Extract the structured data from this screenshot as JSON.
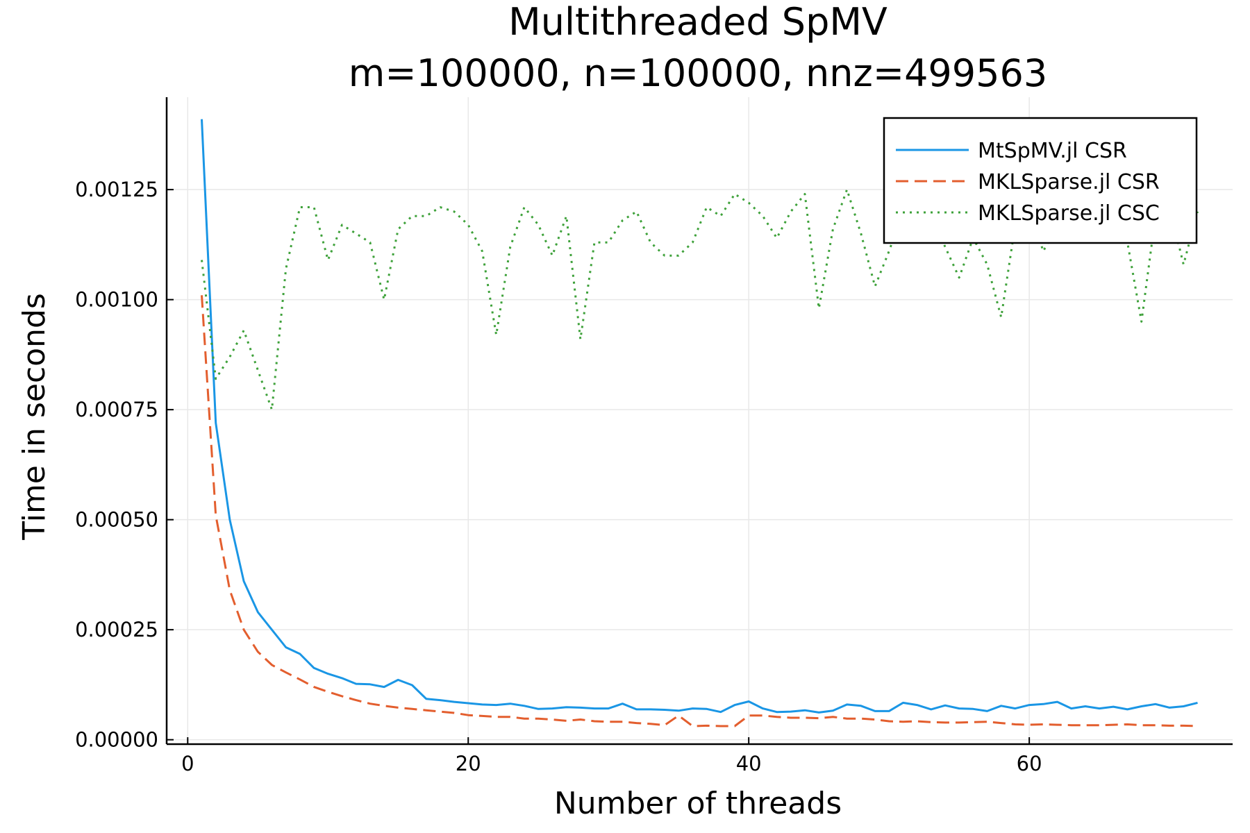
{
  "chart_data": {
    "type": "line",
    "title": "Multithreaded SpMV",
    "subtitle": "m=100000, n=100000, nnz=499563",
    "xlabel": "Number of threads",
    "ylabel": "Time in seconds",
    "xlim": [
      -1.5,
      74.5
    ],
    "ylim": [
      -1e-05,
      0.00146
    ],
    "xticks": [
      0,
      20,
      40,
      60
    ],
    "xtick_labels": [
      "0",
      "20",
      "40",
      "60"
    ],
    "yticks": [
      0,
      0.00025,
      0.0005,
      0.00075,
      0.001,
      0.00125
    ],
    "ytick_labels": [
      "0.00000",
      "0.00025",
      "0.00050",
      "0.00075",
      "0.00100",
      "0.00125"
    ],
    "grid": true,
    "legend_position": "top-right",
    "x": [
      1,
      2,
      3,
      4,
      5,
      6,
      7,
      8,
      9,
      10,
      11,
      12,
      13,
      14,
      15,
      16,
      17,
      18,
      19,
      20,
      21,
      22,
      23,
      24,
      25,
      26,
      27,
      28,
      29,
      30,
      31,
      32,
      33,
      34,
      35,
      36,
      37,
      38,
      39,
      40,
      41,
      42,
      43,
      44,
      45,
      46,
      47,
      48,
      49,
      50,
      51,
      52,
      53,
      54,
      55,
      56,
      57,
      58,
      59,
      60,
      61,
      62,
      63,
      64,
      65,
      66,
      67,
      68,
      69,
      70,
      71,
      72
    ],
    "series": [
      {
        "name": "MtSpMV.jl CSR",
        "color": "#1a96e5",
        "dash": "solid",
        "values": [
          0.00141,
          0.00072,
          0.0005,
          0.00036,
          0.00029,
          0.00025,
          0.00021,
          0.000195,
          0.000163,
          0.00015,
          0.00014,
          0.000127,
          0.000126,
          0.00012,
          0.000136,
          0.000124,
          9.3e-05,
          9e-05,
          8.6e-05,
          8.3e-05,
          8e-05,
          7.9e-05,
          8.2e-05,
          7.7e-05,
          7e-05,
          7.1e-05,
          7.4e-05,
          7.3e-05,
          7.1e-05,
          7.1e-05,
          8.2e-05,
          6.9e-05,
          6.9e-05,
          6.8e-05,
          6.6e-05,
          7.1e-05,
          7e-05,
          6.3e-05,
          7.9e-05,
          8.7e-05,
          7.1e-05,
          6.3e-05,
          6.4e-05,
          6.7e-05,
          6.2e-05,
          6.6e-05,
          8e-05,
          7.7e-05,
          6.5e-05,
          6.5e-05,
          8.4e-05,
          7.9e-05,
          6.9e-05,
          7.8e-05,
          7.1e-05,
          7e-05,
          6.5e-05,
          7.7e-05,
          7.1e-05,
          7.9e-05,
          8.1e-05,
          8.6e-05,
          7.1e-05,
          7.6e-05,
          7.1e-05,
          7.5e-05,
          6.9e-05,
          7.6e-05,
          8.1e-05,
          7.3e-05,
          7.6e-05,
          8.4e-05
        ]
      },
      {
        "name": "MKLSparse.jl CSR",
        "color": "#e35e2e",
        "dash": "dashed",
        "values": [
          0.00101,
          0.00051,
          0.00034,
          0.00025,
          0.0002,
          0.00017,
          0.000153,
          0.000137,
          0.00012,
          0.000109,
          9.9e-05,
          9e-05,
          8.2e-05,
          7.7e-05,
          7.3e-05,
          7e-05,
          6.7e-05,
          6.4e-05,
          6.1e-05,
          5.6e-05,
          5.4e-05,
          5.2e-05,
          5.2e-05,
          4.8e-05,
          4.8e-05,
          4.6e-05,
          4.3e-05,
          4.6e-05,
          4.2e-05,
          4.1e-05,
          4.1e-05,
          3.8e-05,
          3.6e-05,
          3.3e-05,
          5.5e-05,
          3.1e-05,
          3.2e-05,
          3.1e-05,
          3.1e-05,
          5.5e-05,
          5.5e-05,
          5.2e-05,
          5e-05,
          5e-05,
          4.9e-05,
          5.2e-05,
          4.8e-05,
          4.8e-05,
          4.6e-05,
          4.2e-05,
          4.1e-05,
          4.2e-05,
          4e-05,
          3.9e-05,
          3.9e-05,
          4e-05,
          4.1e-05,
          3.8e-05,
          3.5e-05,
          3.4e-05,
          3.5e-05,
          3.4e-05,
          3.3e-05,
          3.3e-05,
          3.3e-05,
          3.4e-05,
          3.5e-05,
          3.3e-05,
          3.3e-05,
          3.2e-05,
          3.2e-05,
          3.1e-05
        ]
      },
      {
        "name": "MKLSparse.jl CSC",
        "color": "#3ea13a",
        "dash": "dotted",
        "values": [
          0.00109,
          0.00082,
          0.00087,
          0.00093,
          0.00084,
          0.00075,
          0.00107,
          0.00121,
          0.00121,
          0.00109,
          0.00117,
          0.00115,
          0.00113,
          0.001,
          0.00116,
          0.00119,
          0.00119,
          0.00121,
          0.0012,
          0.00117,
          0.00111,
          0.00092,
          0.00112,
          0.00121,
          0.00117,
          0.0011,
          0.00119,
          0.00091,
          0.00113,
          0.00113,
          0.00118,
          0.0012,
          0.00113,
          0.0011,
          0.0011,
          0.00113,
          0.00121,
          0.00119,
          0.00124,
          0.00122,
          0.00119,
          0.00114,
          0.0012,
          0.00124,
          0.00098,
          0.00116,
          0.00125,
          0.00115,
          0.00103,
          0.00111,
          0.0012,
          0.00124,
          0.00119,
          0.00112,
          0.00105,
          0.00114,
          0.00108,
          0.00096,
          0.00117,
          0.00121,
          0.00111,
          0.00117,
          0.00117,
          0.00121,
          0.00119,
          0.00121,
          0.00113,
          0.00095,
          0.00119,
          0.00121,
          0.00108,
          0.0012
        ]
      }
    ]
  }
}
